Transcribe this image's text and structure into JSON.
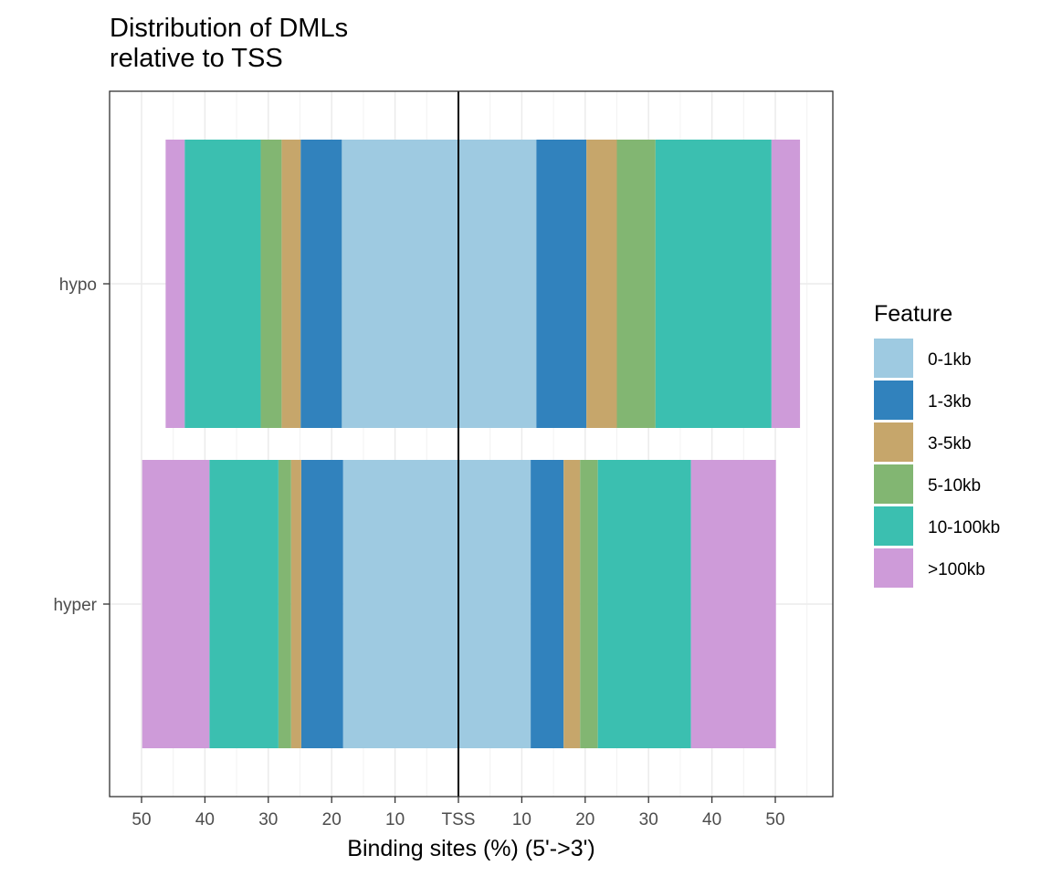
{
  "chart_data": {
    "type": "bar",
    "orientation": "horizontal",
    "stacked": "diverging",
    "title_lines": [
      "Distribution of DMLs",
      "relative to TSS"
    ],
    "xlabel": "Binding sites (%) (5'->3')",
    "ylabel": "",
    "xlim": [
      -55,
      59
    ],
    "x_ticks": [
      {
        "value": -50,
        "label": "50"
      },
      {
        "value": -40,
        "label": "40"
      },
      {
        "value": -30,
        "label": "30"
      },
      {
        "value": -20,
        "label": "20"
      },
      {
        "value": -10,
        "label": "10"
      },
      {
        "value": 0,
        "label": "TSS"
      },
      {
        "value": 10,
        "label": "10"
      },
      {
        "value": 20,
        "label": "20"
      },
      {
        "value": 30,
        "label": "30"
      },
      {
        "value": 40,
        "label": "40"
      },
      {
        "value": 50,
        "label": "50"
      }
    ],
    "categories": [
      "hypo",
      "hyper"
    ],
    "grid": true,
    "legend": {
      "title": "Feature",
      "position": "right",
      "entries": [
        "0-1kb",
        "1-3kb",
        "3-5kb",
        "5-10kb",
        "10-100kb",
        ">100kb"
      ]
    },
    "colors": {
      "0-1kb": "#9ECAE1",
      "1-3kb": "#3182BD",
      "3-5kb": "#C6A66B",
      "5-10kb": "#82B672",
      "10-100kb": "#3BBFB0",
      ">100kb": "#CE9BD9"
    },
    "series": [
      {
        "name": "0-1kb",
        "upstream": [
          18.4,
          18.2
        ],
        "downstream": [
          12.3,
          11.4
        ]
      },
      {
        "name": "1-3kb",
        "upstream": [
          6.5,
          6.6
        ],
        "downstream": [
          7.9,
          5.2
        ]
      },
      {
        "name": "3-5kb",
        "upstream": [
          3.0,
          1.6
        ],
        "downstream": [
          4.8,
          2.6
        ]
      },
      {
        "name": "5-10kb",
        "upstream": [
          3.3,
          2.0
        ],
        "downstream": [
          6.1,
          2.8
        ]
      },
      {
        "name": "10-100kb",
        "upstream": [
          12.0,
          10.9
        ],
        "downstream": [
          18.3,
          14.7
        ]
      },
      {
        "name": ">100kb",
        "upstream": [
          3.0,
          10.6
        ],
        "downstream": [
          4.5,
          13.4
        ]
      }
    ]
  }
}
